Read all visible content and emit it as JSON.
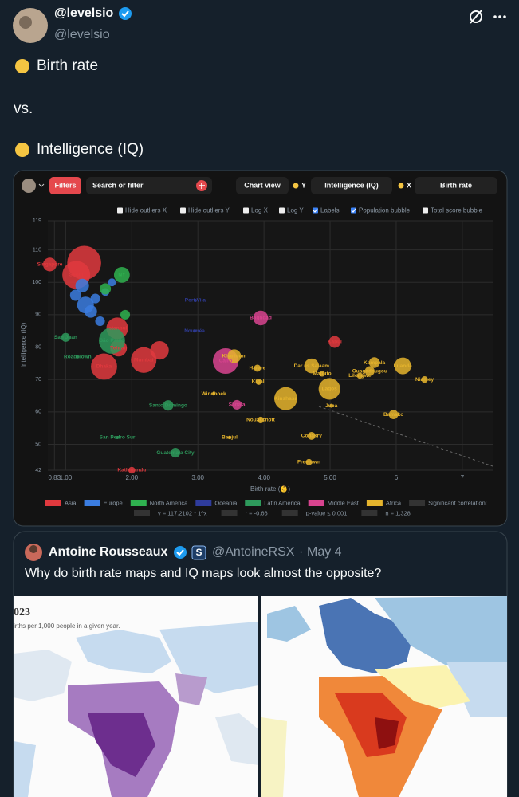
{
  "tweet": {
    "name": "@levelsio",
    "handle": "@levelsio",
    "lines": [
      "Birth rate",
      "vs.",
      "Intelligence (IQ)"
    ]
  },
  "toolbar": {
    "filters": "Filters",
    "search": "Search or filter",
    "chart_view": "Chart view",
    "y_label": "Y",
    "y_value": "Intelligence (IQ)",
    "x_label": "X",
    "x_value": "Birth rate",
    "options": [
      {
        "label": "Hide outliers X",
        "checked": false
      },
      {
        "label": "Hide outliers Y",
        "checked": false
      },
      {
        "label": "Log X",
        "checked": false
      },
      {
        "label": "Log Y",
        "checked": false
      },
      {
        "label": "Labels",
        "checked": true
      },
      {
        "label": "Population bubble",
        "checked": true
      },
      {
        "label": "Total score bubble",
        "checked": false
      }
    ]
  },
  "chart_data": {
    "type": "scatter",
    "x_label": "Birth rate (👶)",
    "y_label": "Intelligence (IQ)",
    "xlim": [
      0.73,
      7.46
    ],
    "ylim": [
      42,
      119
    ],
    "xticks": [
      0.83,
      {
        "value": 1,
        "label": "1.00"
      },
      {
        "value": 2,
        "label": "2.00"
      },
      {
        "value": 3,
        "label": "3.00"
      },
      {
        "value": 4,
        "label": "4.00"
      },
      {
        "value": 5,
        "label": "5.00"
      },
      6,
      7
    ],
    "yticks": [
      42,
      50,
      60,
      70,
      80,
      90,
      100,
      110,
      119
    ],
    "grid": true,
    "legend_note": "Significant correlation:",
    "stats": [
      "y = 117.2102 * 1^x",
      "r = -0.66",
      "p-value ≤ 0.001",
      "n = 1,328"
    ],
    "series": [
      {
        "name": "Asia",
        "color": "#e0393e",
        "x": [
          0.76,
          1.28,
          1.16,
          1.58,
          2.18,
          2.42,
          2.0,
          5.07,
          1.78,
          1.8
        ],
        "values": [
          105.5,
          106,
          102.3,
          74,
          76,
          79,
          42,
          81.6,
          85.8,
          79.7
        ],
        "sizes": [
          6,
          37,
          25,
          22,
          21,
          11,
          1.5,
          4.5,
          15,
          9
        ],
        "labels": [
          "Singapore",
          null,
          "Seoul",
          "Dhaka",
          "Mumbai",
          null,
          "Kathmandu",
          "Kabul",
          "Istanbul",
          "Tehran"
        ]
      },
      {
        "name": "Europe",
        "color": "#3b7de0",
        "x": [
          1.15,
          1.3,
          1.45,
          1.25,
          1.6,
          1.38,
          1.52,
          1.7
        ],
        "values": [
          96,
          93,
          95,
          99,
          97,
          91,
          88,
          100
        ],
        "sizes": [
          4,
          9,
          3,
          6,
          2,
          5,
          3,
          2
        ],
        "labels": [
          null,
          null,
          null,
          null,
          null,
          null,
          null,
          null
        ]
      },
      {
        "name": "North America",
        "color": "#2fb14f",
        "x": [
          1.85,
          1.6,
          1.9
        ],
        "values": [
          102.3,
          98,
          90
        ],
        "sizes": [
          8,
          4,
          3
        ],
        "labels": [
          "NY",
          null,
          null
        ]
      },
      {
        "name": "Oceania",
        "color": "#2f3c9c",
        "x": [
          2.96,
          2.95
        ],
        "values": [
          94.4,
          85
        ],
        "sizes": [
          0.05,
          0.2
        ],
        "labels": [
          "Port Vila",
          "Nouméa"
        ]
      },
      {
        "name": "Latin America",
        "color": "#2e9a5c",
        "x": [
          1.0,
          1.18,
          1.7,
          1.78,
          2.66,
          2.55
        ],
        "values": [
          83,
          77,
          82,
          52.1,
          47.4,
          62
        ],
        "sizes": [
          2.5,
          0.1,
          22,
          0.3,
          3,
          3.5
        ],
        "labels": [
          "San Juan",
          "Road Town",
          "São Paulo",
          "San Pedro Sur",
          "Guatemala City",
          "Santo Domingo"
        ]
      },
      {
        "name": "Middle East",
        "color": "#d8448f",
        "x": [
          3.95,
          3.42,
          3.59
        ],
        "values": [
          89,
          75.7,
          62.2
        ],
        "sizes": [
          7,
          21,
          3
        ],
        "labels": [
          "Baghdad",
          "Cairo",
          "Sana'a"
        ]
      },
      {
        "name": "Africa",
        "color": "#e5b42d",
        "x": [
          4.99,
          4.33,
          4.72,
          4.88,
          5.67,
          6.1,
          6.43,
          5.96,
          5.02,
          4.72,
          4.68,
          3.48,
          3.95,
          3.24,
          3.92,
          3.9,
          3.55,
          5.6,
          5.45
        ],
        "values": [
          67.1,
          64.1,
          74.2,
          71.8,
          75.2,
          74.2,
          70.0,
          59.2,
          61.9,
          52.6,
          44.5,
          52.1,
          57.5,
          65.6,
          69.3,
          73.5,
          77.2,
          72.6,
          71.2
        ],
        "sizes": [
          15,
          17,
          7,
          1.1,
          3.7,
          9,
          1.4,
          2.8,
          0.5,
          2,
          1.3,
          0.4,
          1.4,
          0.4,
          1.2,
          1.6,
          6,
          3,
          1.2
        ],
        "labels": [
          "Lagos",
          "Kinshasa",
          "Dar es Salaam",
          "Maputo",
          "Kampala",
          "Luanda",
          "Niamey",
          "Bamako",
          "Juba",
          "Conakry",
          "Freetown",
          "Banjul",
          "Nouakchott",
          "Windhoek",
          "Kigali",
          "Harare",
          "Khartoum",
          "Ouagadougou",
          "Lilongwe"
        ]
      }
    ]
  },
  "quote": {
    "name": "Antoine Rousseaux",
    "badge": "S",
    "handle": "@AntoineRSX",
    "separator": "·",
    "date": "May 4",
    "text": "Why do birth rate maps and IQ maps look almost the opposite?",
    "map_title": "023",
    "map_subtitle": "irths per 1,000 people in a given year."
  }
}
